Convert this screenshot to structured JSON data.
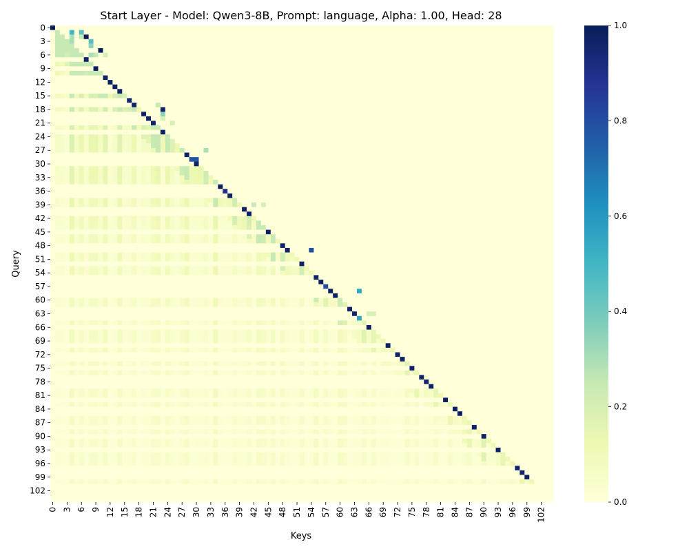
{
  "chart_data": {
    "type": "heatmap",
    "title": "Start Layer - Model: Qwen3-8B, Prompt: language, Alpha: 1.00, Head: 28",
    "xlabel": "Keys",
    "ylabel": "Query",
    "n_tokens": 105,
    "x_tick_labels": [
      "0",
      "3",
      "6",
      "9",
      "12",
      "15",
      "18",
      "21",
      "24",
      "27",
      "30",
      "33",
      "36",
      "39",
      "42",
      "45",
      "48",
      "51",
      "54",
      "57",
      "60",
      "63",
      "66",
      "69",
      "72",
      "75",
      "78",
      "81",
      "84",
      "87",
      "90",
      "93",
      "96",
      "99",
      "102"
    ],
    "y_tick_labels": [
      "0",
      "3",
      "6",
      "9",
      "12",
      "15",
      "18",
      "21",
      "24",
      "27",
      "30",
      "33",
      "36",
      "39",
      "42",
      "45",
      "48",
      "51",
      "54",
      "57",
      "60",
      "63",
      "66",
      "69",
      "72",
      "75",
      "78",
      "81",
      "84",
      "87",
      "90",
      "93",
      "96",
      "99",
      "102"
    ],
    "value_range": [
      0.0,
      1.0
    ],
    "colormap": "YlGnBu",
    "colorbar_ticks": [
      "0.0",
      "0.2",
      "0.4",
      "0.6",
      "0.8",
      "1.0"
    ],
    "colorbar_tick_values": [
      0.0,
      0.2,
      0.4,
      0.6,
      0.8,
      1.0
    ],
    "masked_region": "upper triangle (keys > query) near zero; rows 101-104 near zero",
    "diagonal_values": [
      1.0,
      0,
      0,
      0,
      0,
      0,
      0,
      0.97,
      0,
      0.98,
      0,
      0.97,
      0.98,
      0.98,
      0.97,
      0,
      0.95,
      0.97,
      0,
      0.97,
      0.97,
      0.96,
      0,
      0.98,
      0,
      0,
      0,
      0,
      0.97,
      0.78,
      0.97,
      0,
      0,
      0,
      0,
      0.98,
      0.9,
      0.97,
      0,
      0,
      0.98,
      0.98,
      0,
      0,
      0,
      0.97,
      0,
      0,
      0.97,
      0.96,
      0,
      0,
      0.98,
      0,
      0,
      0.97,
      0.98,
      0.8,
      0.98,
      0.98,
      0,
      0,
      0.96,
      0.95,
      0.55,
      0,
      0.98,
      0,
      0,
      0,
      0.98,
      0,
      0.97,
      0.97,
      0,
      0.96,
      0,
      0.97,
      0.96,
      0.98,
      0,
      0,
      0.98,
      0,
      0.98,
      0.98,
      0,
      0,
      0.96,
      0,
      0.98,
      0,
      0,
      0.97,
      0,
      0,
      0,
      0.96,
      0.96,
      0.98,
      0,
      0,
      0.97,
      0,
      0
    ],
    "notable_cells": [
      {
        "query": 1,
        "key": 4,
        "value": 0.5
      },
      {
        "query": 1,
        "key": 6,
        "value": 0.45
      },
      {
        "query": 2,
        "key": 4,
        "value": 0.3
      },
      {
        "query": 2,
        "key": 6,
        "value": 0.25
      },
      {
        "query": 2,
        "key": 7,
        "value": 1.0
      },
      {
        "query": 3,
        "key": 8,
        "value": 0.45
      },
      {
        "query": 3,
        "key": 4,
        "value": 0.3
      },
      {
        "query": 4,
        "key": 8,
        "value": 0.35
      },
      {
        "query": 5,
        "key": 10,
        "value": 1.0
      },
      {
        "query": 6,
        "key": 8,
        "value": 0.3
      },
      {
        "query": 6,
        "key": 9,
        "value": 0.25
      },
      {
        "query": 6,
        "key": 11,
        "value": 0.2
      },
      {
        "query": 17,
        "key": 22,
        "value": 0.25
      },
      {
        "query": 18,
        "key": 23,
        "value": 0.97
      },
      {
        "query": 19,
        "key": 23,
        "value": 0.35
      },
      {
        "query": 20,
        "key": 23,
        "value": 0.2
      },
      {
        "query": 21,
        "key": 25,
        "value": 0.2
      },
      {
        "query": 27,
        "key": 32,
        "value": 0.3
      },
      {
        "query": 29,
        "key": 30,
        "value": 0.78
      },
      {
        "query": 39,
        "key": 42,
        "value": 0.25
      },
      {
        "query": 39,
        "key": 44,
        "value": 0.2
      },
      {
        "query": 49,
        "key": 54,
        "value": 0.8
      },
      {
        "query": 58,
        "key": 64,
        "value": 0.55
      },
      {
        "query": 63,
        "key": 66,
        "value": 0.2
      },
      {
        "query": 63,
        "key": 67,
        "value": 0.2
      }
    ],
    "x_ticks": [
      0,
      3,
      6,
      9,
      12,
      15,
      18,
      21,
      24,
      27,
      30,
      33,
      36,
      39,
      42,
      45,
      48,
      51,
      54,
      57,
      60,
      63,
      66,
      69,
      72,
      75,
      78,
      81,
      84,
      87,
      90,
      93,
      96,
      99,
      102
    ],
    "y_ticks": [
      0,
      3,
      6,
      9,
      12,
      15,
      18,
      21,
      24,
      27,
      30,
      33,
      36,
      39,
      42,
      45,
      48,
      51,
      54,
      57,
      60,
      63,
      66,
      69,
      72,
      75,
      78,
      81,
      84,
      87,
      90,
      93,
      96,
      99,
      102
    ],
    "colorbar_ticks_values": [
      0.0,
      0.2,
      0.4,
      0.6,
      0.8,
      1.0
    ]
  }
}
